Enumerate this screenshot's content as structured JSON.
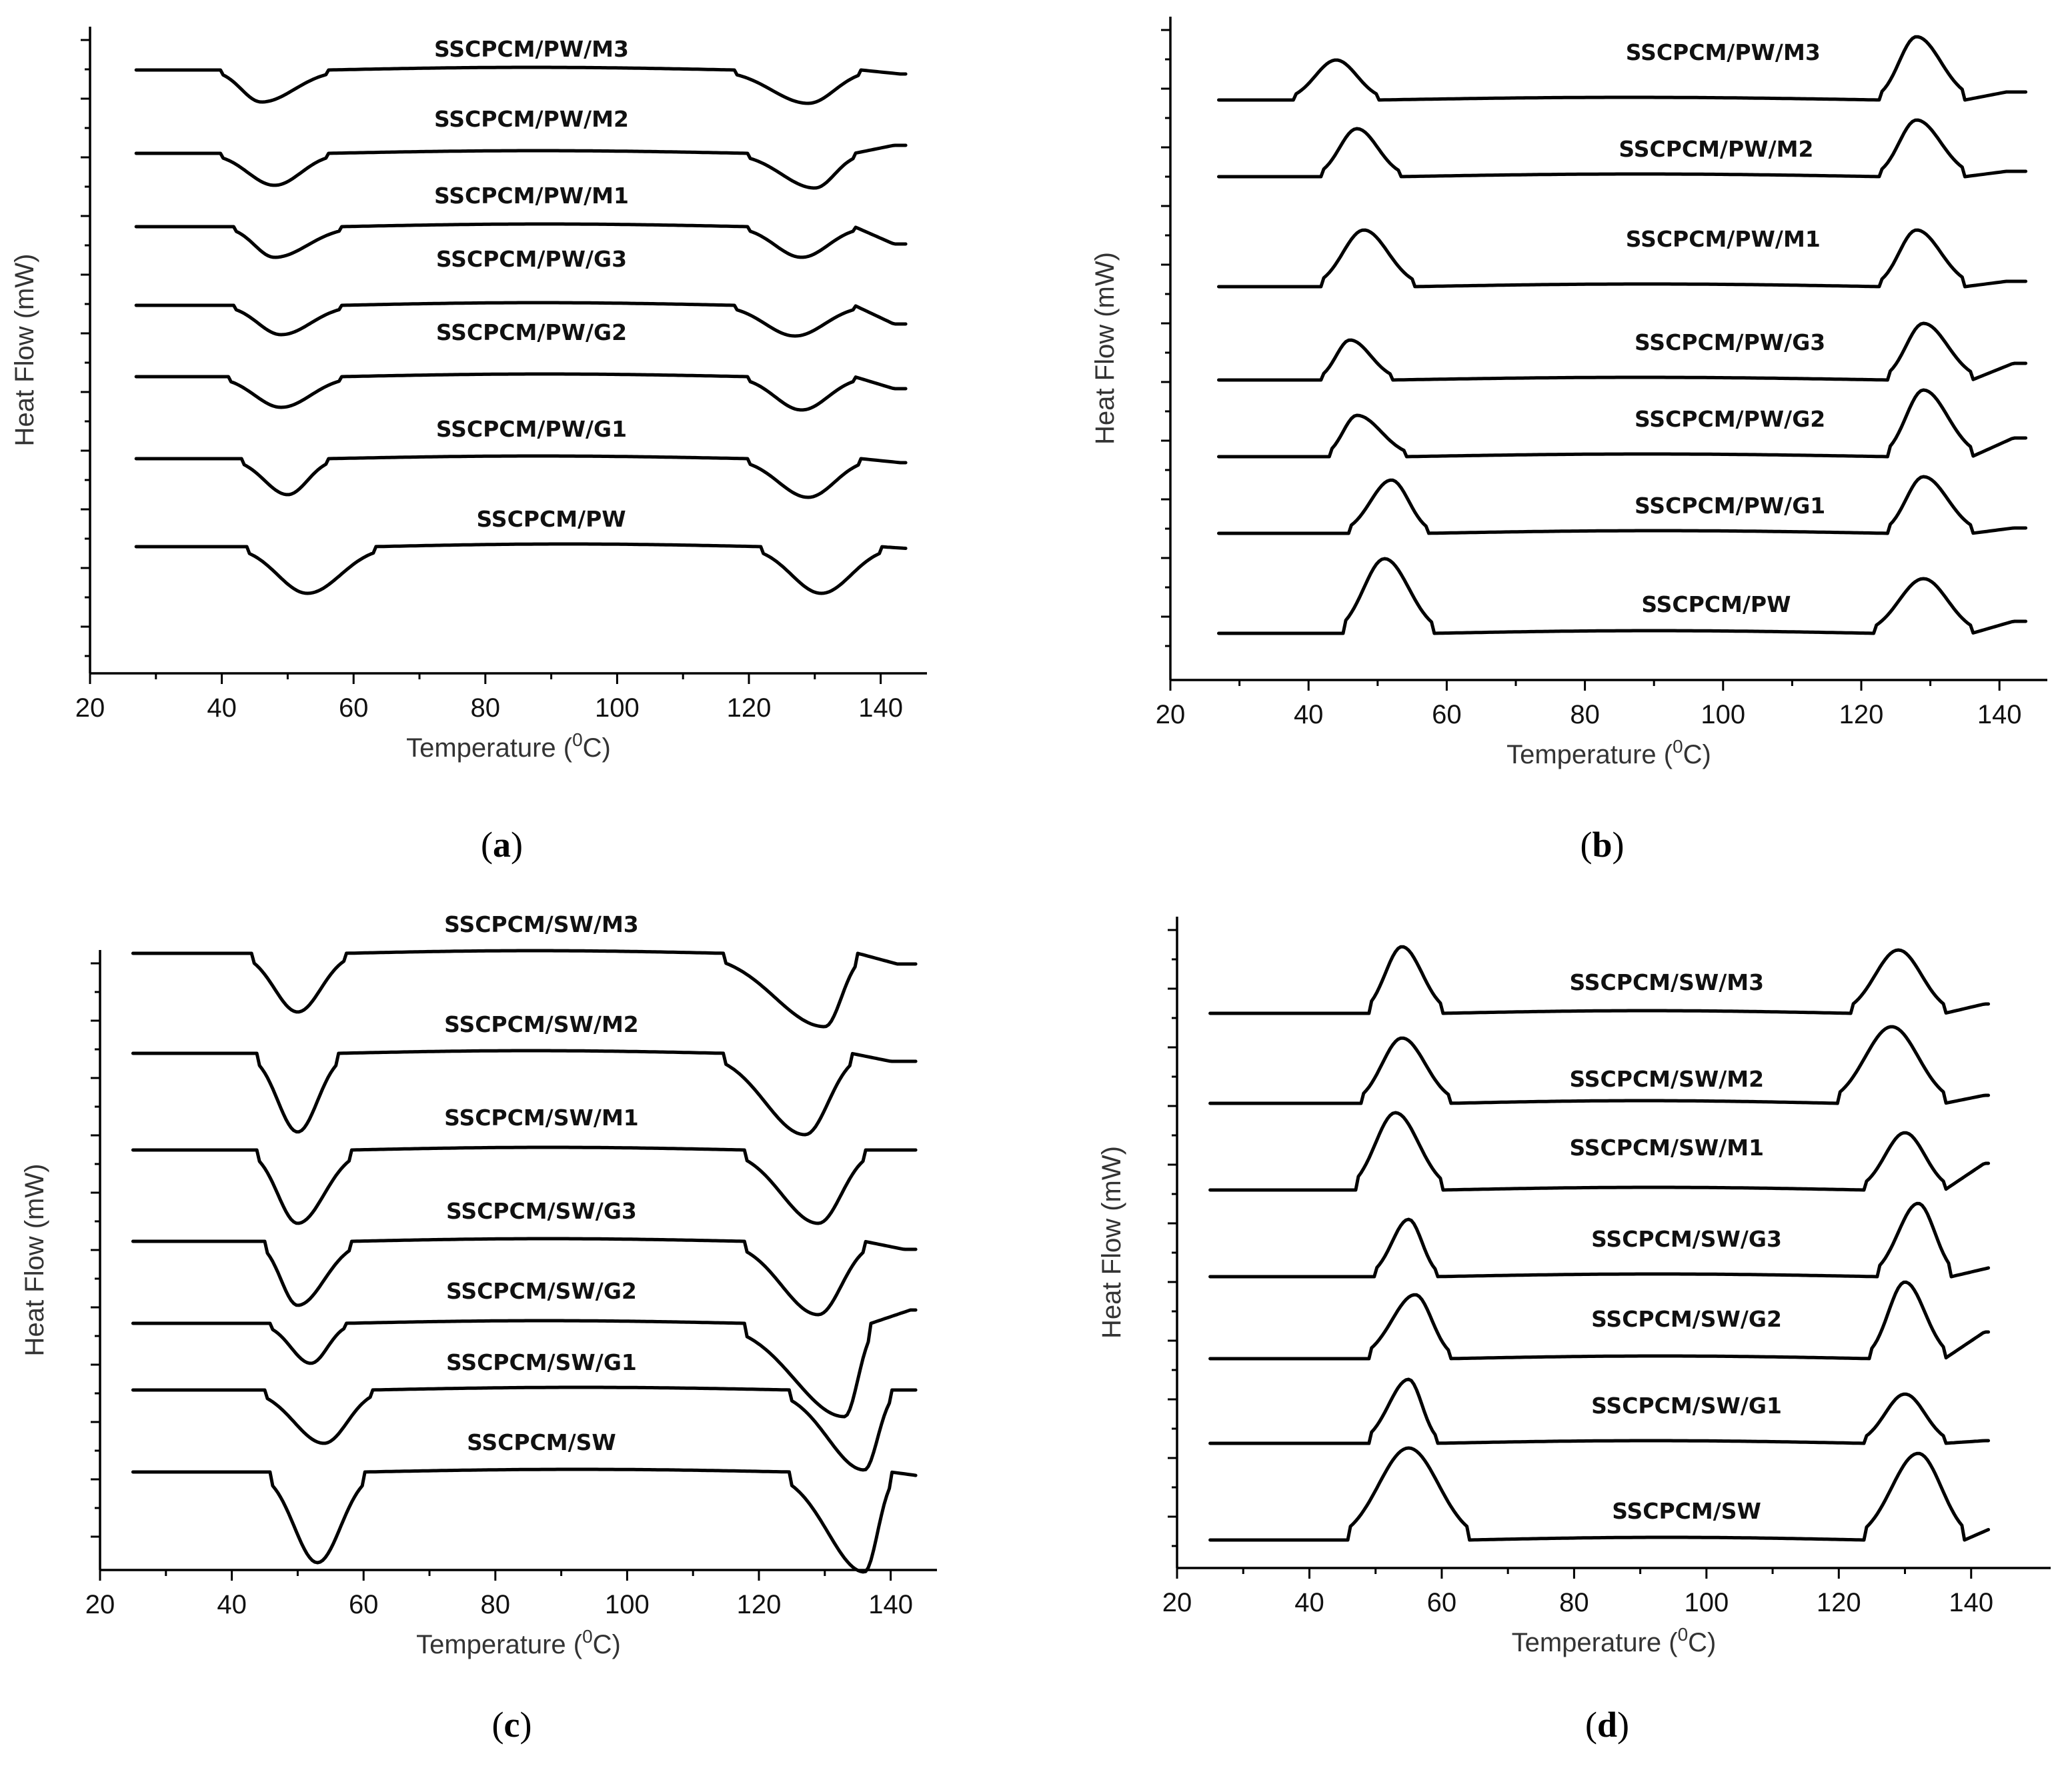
{
  "figure": {
    "panels": [
      "a",
      "b",
      "c",
      "d"
    ]
  },
  "chart_data": [
    {
      "id": "a",
      "type": "line",
      "panel_label": "a",
      "xlabel": "Temperature (°C)",
      "xlabel_main": "Temperature (",
      "xlabel_sup": "0",
      "xlabel_end": "C)",
      "ylabel": "Heat Flow (mW)",
      "xlim": [
        20,
        145
      ],
      "xticks": [
        20,
        40,
        60,
        80,
        100,
        120,
        140
      ],
      "curve_direction": "endothermic-down",
      "series": [
        {
          "name": "SSCPCM/PW/M3",
          "label_x": 87,
          "peak1": {
            "start": 40,
            "center": 46,
            "end": 56,
            "depth": 48
          },
          "peak2": {
            "start": 118,
            "center": 129,
            "end": 137,
            "depth": 50
          },
          "end_offset": -6
        },
        {
          "name": "SSCPCM/PW/M2",
          "label_x": 87,
          "peak1": {
            "start": 40,
            "center": 48,
            "end": 56,
            "depth": 48
          },
          "peak2": {
            "start": 120,
            "center": 130,
            "end": 136,
            "depth": 52
          },
          "end_offset": 12
        },
        {
          "name": "SSCPCM/PW/M1",
          "label_x": 87,
          "peak1": {
            "start": 42,
            "center": 48,
            "end": 58,
            "depth": 46
          },
          "peak2": {
            "start": 120,
            "center": 128,
            "end": 136,
            "depth": 46
          },
          "end_offset": -26
        },
        {
          "name": "SSCPCM/PW/G3",
          "label_x": 87,
          "peak1": {
            "start": 42,
            "center": 49,
            "end": 58,
            "depth": 44
          },
          "peak2": {
            "start": 118,
            "center": 127,
            "end": 136,
            "depth": 46
          },
          "end_offset": -28
        },
        {
          "name": "SSCPCM/PW/G2",
          "label_x": 87,
          "peak1": {
            "start": 41,
            "center": 49,
            "end": 58,
            "depth": 46
          },
          "peak2": {
            "start": 120,
            "center": 128,
            "end": 136,
            "depth": 50
          },
          "end_offset": -18
        },
        {
          "name": "SSCPCM/PW/G1",
          "label_x": 87,
          "peak1": {
            "start": 43,
            "center": 50,
            "end": 56,
            "depth": 54
          },
          "peak2": {
            "start": 120,
            "center": 129,
            "end": 137,
            "depth": 58
          },
          "end_offset": -6
        },
        {
          "name": "SSCPCM/PW",
          "label_x": 90,
          "peak1": {
            "start": 44,
            "center": 53,
            "end": 63,
            "depth": 70
          },
          "peak2": {
            "start": 122,
            "center": 131,
            "end": 140,
            "depth": 70
          },
          "end_offset": -4
        }
      ]
    },
    {
      "id": "b",
      "type": "line",
      "panel_label": "b",
      "xlabel": "Temperature (°C)",
      "xlabel_main": "Temperature (",
      "xlabel_sup": "0",
      "xlabel_end": "C)",
      "ylabel": "Heat Flow (mW)",
      "xlim": [
        20,
        145
      ],
      "xticks": [
        20,
        40,
        60,
        80,
        100,
        120,
        140
      ],
      "curve_direction": "exothermic-up",
      "series": [
        {
          "name": "SSCPCM/PW/M3",
          "label_x": 100,
          "peak1": {
            "start": 38,
            "center": 44,
            "end": 50,
            "depth": 60
          },
          "peak2": {
            "start": 123,
            "center": 128,
            "end": 135,
            "depth": 95
          },
          "end_offset": 12
        },
        {
          "name": "SSCPCM/PW/M2",
          "label_x": 99,
          "peak1": {
            "start": 42,
            "center": 47,
            "end": 53,
            "depth": 72
          },
          "peak2": {
            "start": 123,
            "center": 128,
            "end": 135,
            "depth": 85
          },
          "end_offset": 8
        },
        {
          "name": "SSCPCM/PW/M1",
          "label_x": 100,
          "peak1": {
            "start": 42,
            "center": 48,
            "end": 55,
            "depth": 85
          },
          "peak2": {
            "start": 123,
            "center": 128,
            "end": 135,
            "depth": 85
          },
          "end_offset": 8
        },
        {
          "name": "SSCPCM/PW/G3",
          "label_x": 101,
          "peak1": {
            "start": 42,
            "center": 46,
            "end": 52,
            "depth": 60
          },
          "peak2": {
            "start": 124,
            "center": 129,
            "end": 136,
            "depth": 85
          },
          "end_offset": 25
        },
        {
          "name": "SSCPCM/PW/G2",
          "label_x": 101,
          "peak1": {
            "start": 43,
            "center": 47,
            "end": 54,
            "depth": 62
          },
          "peak2": {
            "start": 124,
            "center": 129,
            "end": 136,
            "depth": 100
          },
          "end_offset": 28
        },
        {
          "name": "SSCPCM/PW/G1",
          "label_x": 101,
          "peak1": {
            "start": 46,
            "center": 52,
            "end": 57,
            "depth": 80
          },
          "peak2": {
            "start": 124,
            "center": 129,
            "end": 136,
            "depth": 85
          },
          "end_offset": 8
        },
        {
          "name": "SSCPCM/PW",
          "label_x": 99,
          "peak1": {
            "start": 45,
            "center": 51,
            "end": 58,
            "depth": 112
          },
          "peak2": {
            "start": 122,
            "center": 129,
            "end": 136,
            "depth": 82
          },
          "end_offset": 18
        }
      ]
    },
    {
      "id": "c",
      "type": "line",
      "panel_label": "c",
      "xlabel": "Temperature (°C)",
      "xlabel_main": "Temperature (",
      "xlabel_sup": "0",
      "xlabel_end": "C)",
      "ylabel": "Heat Flow (mW)",
      "xlim": [
        20,
        145
      ],
      "xticks": [
        20,
        40,
        60,
        80,
        100,
        120,
        140
      ],
      "curve_direction": "endothermic-down",
      "series": [
        {
          "name": "SSCPCM/SW/M3",
          "label_x": 87,
          "peak1": {
            "start": 43,
            "center": 50,
            "end": 57,
            "depth": 88
          },
          "peak2": {
            "start": 115,
            "center": 130,
            "end": 135,
            "depth": 110
          },
          "end_offset": -16
        },
        {
          "name": "SSCPCM/SW/M2",
          "label_x": 87,
          "peak1": {
            "start": 44,
            "center": 50,
            "end": 56,
            "depth": 118
          },
          "peak2": {
            "start": 115,
            "center": 127,
            "end": 134,
            "depth": 122
          },
          "end_offset": -12
        },
        {
          "name": "SSCPCM/SW/M1",
          "label_x": 87,
          "peak1": {
            "start": 44,
            "center": 50,
            "end": 58,
            "depth": 110
          },
          "peak2": {
            "start": 118,
            "center": 129,
            "end": 136,
            "depth": 110
          },
          "end_offset": 0
        },
        {
          "name": "SSCPCM/SW/G3",
          "label_x": 87,
          "peak1": {
            "start": 45,
            "center": 50,
            "end": 58,
            "depth": 96
          },
          "peak2": {
            "start": 118,
            "center": 129,
            "end": 136,
            "depth": 110
          },
          "end_offset": -12
        },
        {
          "name": "SSCPCM/SW/G2",
          "label_x": 87,
          "peak1": {
            "start": 46,
            "center": 52,
            "end": 57,
            "depth": 60
          },
          "peak2": {
            "start": 118,
            "center": 133,
            "end": 137,
            "depth": 140
          },
          "end_offset": 20
        },
        {
          "name": "SSCPCM/SW/G1",
          "label_x": 87,
          "peak1": {
            "start": 45,
            "center": 54,
            "end": 61,
            "depth": 80
          },
          "peak2": {
            "start": 125,
            "center": 136,
            "end": 140,
            "depth": 120
          },
          "end_offset": 0
        },
        {
          "name": "SSCPCM/SW",
          "label_x": 87,
          "peak1": {
            "start": 46,
            "center": 53,
            "end": 60,
            "depth": 136
          },
          "peak2": {
            "start": 125,
            "center": 136,
            "end": 140,
            "depth": 150
          },
          "end_offset": -8
        }
      ]
    },
    {
      "id": "d",
      "type": "line",
      "panel_label": "d",
      "xlabel": "Temperature (°C)",
      "xlabel_main": "Temperature (",
      "xlabel_sup": "0",
      "xlabel_end": "C)",
      "ylabel": "Heat Flow (mW)",
      "xlim": [
        20,
        150
      ],
      "xticks": [
        20,
        40,
        60,
        80,
        100,
        120,
        140
      ],
      "curve_direction": "exothermic-up",
      "series": [
        {
          "name": "SSCPCM/SW/M3",
          "label_x": 94,
          "peak1": {
            "start": 49,
            "center": 54,
            "end": 60,
            "depth": 100
          },
          "peak2": {
            "start": 122,
            "center": 129,
            "end": 136,
            "depth": 95
          },
          "end_offset": 14
        },
        {
          "name": "SSCPCM/SW/M2",
          "label_x": 94,
          "peak1": {
            "start": 48,
            "center": 54,
            "end": 61,
            "depth": 98
          },
          "peak2": {
            "start": 120,
            "center": 128,
            "end": 136,
            "depth": 115
          },
          "end_offset": 12
        },
        {
          "name": "SSCPCM/SW/M1",
          "label_x": 94,
          "peak1": {
            "start": 47,
            "center": 53,
            "end": 60,
            "depth": 116
          },
          "peak2": {
            "start": 124,
            "center": 130,
            "end": 136,
            "depth": 86
          },
          "end_offset": 40
        },
        {
          "name": "SSCPCM/SW/G3",
          "label_x": 97,
          "peak1": {
            "start": 50,
            "center": 55,
            "end": 59,
            "depth": 86
          },
          "peak2": {
            "start": 126,
            "center": 132,
            "end": 137,
            "depth": 110
          },
          "end_offset": 14
        },
        {
          "name": "SSCPCM/SW/G2",
          "label_x": 97,
          "peak1": {
            "start": 49,
            "center": 56,
            "end": 61,
            "depth": 96
          },
          "peak2": {
            "start": 125,
            "center": 130,
            "end": 136,
            "depth": 115
          },
          "end_offset": 40
        },
        {
          "name": "SSCPCM/SW/G1",
          "label_x": 97,
          "peak1": {
            "start": 49,
            "center": 55,
            "end": 59,
            "depth": 96
          },
          "peak2": {
            "start": 124,
            "center": 130,
            "end": 136,
            "depth": 74
          },
          "end_offset": 4
        },
        {
          "name": "SSCPCM/SW",
          "label_x": 97,
          "peak1": {
            "start": 46,
            "center": 55,
            "end": 64,
            "depth": 138
          },
          "peak2": {
            "start": 124,
            "center": 132,
            "end": 139,
            "depth": 130
          },
          "end_offset": 26
        }
      ]
    }
  ]
}
